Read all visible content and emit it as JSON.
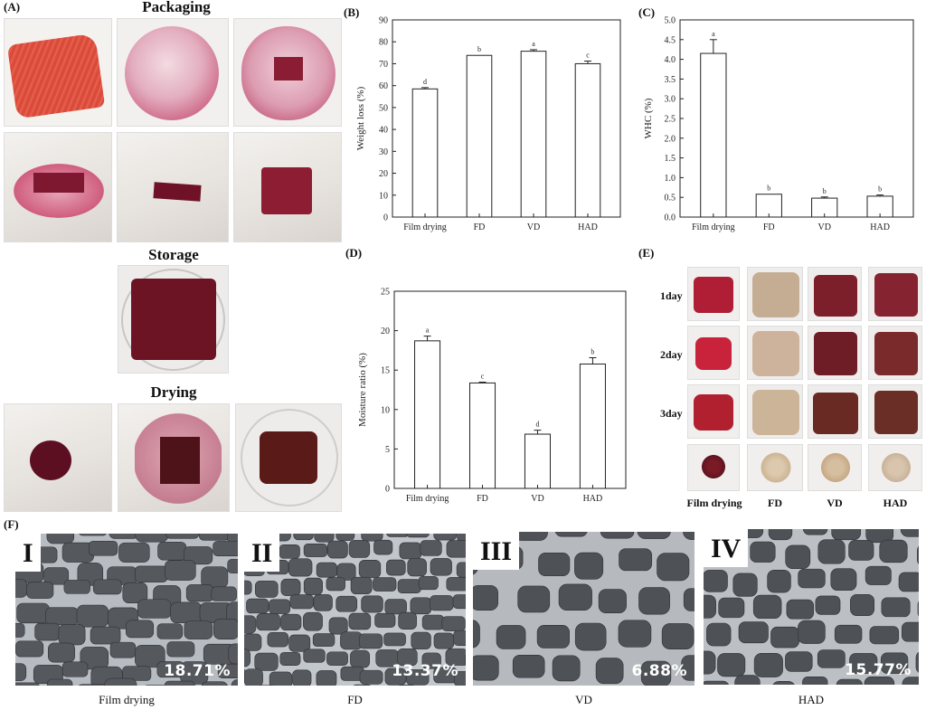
{
  "panel_labels": {
    "A": "(A)",
    "B": "(B)",
    "C": "(C)",
    "D": "(D)",
    "E": "(E)",
    "F": "(F)"
  },
  "panel_a": {
    "packaging_title": "Packaging",
    "storage_title": "Storage",
    "drying_title": "Drying"
  },
  "panel_e": {
    "rows": [
      "1day",
      "2day",
      "3day"
    ],
    "columns": [
      "Film drying",
      "FD",
      "VD",
      "HAD"
    ]
  },
  "panel_f": {
    "images": [
      {
        "numeral": "I",
        "value": "18.71%",
        "caption": "Film drying"
      },
      {
        "numeral": "II",
        "value": "13.37%",
        "caption": "FD"
      },
      {
        "numeral": "III",
        "value": "6.88%",
        "caption": "VD"
      },
      {
        "numeral": "IV",
        "value": "15.77%",
        "caption": "HAD"
      }
    ]
  },
  "colors": {
    "meat_red": "#b8243a",
    "dried_meat": "#6e2a25",
    "fd_beige": "#c9b49c",
    "micro_bg": "#5a5d62"
  },
  "chart_data": [
    {
      "id": "B",
      "type": "bar",
      "title": "",
      "xlabel": "",
      "ylabel": "Weight loss (%)",
      "categories": [
        "Film drying",
        "FD",
        "VD",
        "HAD"
      ],
      "values": [
        58.5,
        73.8,
        75.7,
        70.0
      ],
      "errors": [
        0.6,
        0.0,
        0.7,
        1.2
      ],
      "sig_letters": [
        "d",
        "b",
        "a",
        "c"
      ],
      "ylim": [
        0,
        90
      ],
      "yticks": [
        "0",
        "10",
        "20",
        "30",
        "40",
        "50",
        "60",
        "70",
        "80",
        "90"
      ],
      "grid": false
    },
    {
      "id": "C",
      "type": "bar",
      "title": "",
      "xlabel": "",
      "ylabel": "WHC (%)",
      "categories": [
        "Film drying",
        "FD",
        "VD",
        "HAD"
      ],
      "values": [
        4.15,
        0.58,
        0.48,
        0.53
      ],
      "errors": [
        0.35,
        0.0,
        0.03,
        0.03
      ],
      "sig_letters": [
        "a",
        "b",
        "b",
        "b"
      ],
      "ylim": [
        0,
        5.0
      ],
      "yticks": [
        "0.0",
        "0.5",
        "1.0",
        "1.5",
        "2.0",
        "2.5",
        "3.0",
        "3.5",
        "4.0",
        "4.5",
        "5.0"
      ],
      "grid": false
    },
    {
      "id": "D",
      "type": "bar",
      "title": "",
      "xlabel": "",
      "ylabel": "Moisture ratio (%)",
      "categories": [
        "Film drying",
        "FD",
        "VD",
        "HAD"
      ],
      "values": [
        18.71,
        13.37,
        6.88,
        15.77
      ],
      "errors": [
        0.6,
        0.1,
        0.5,
        0.8
      ],
      "sig_letters": [
        "a",
        "c",
        "d",
        "b"
      ],
      "ylim": [
        0,
        25
      ],
      "yticks": [
        "0",
        "5",
        "10",
        "15",
        "20",
        "25"
      ],
      "grid": false
    }
  ]
}
